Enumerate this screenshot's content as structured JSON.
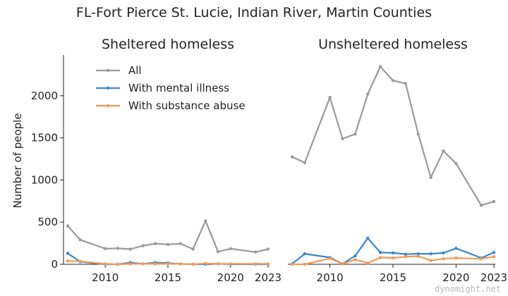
{
  "figure": {
    "title": "FL-Fort Pierce St. Lucie, Indian River, Martin Counties",
    "watermark": "dynomight.net"
  },
  "chart_data": [
    {
      "type": "line",
      "title": "Sheltered homeless",
      "xlabel": "",
      "ylabel": "Number of people",
      "xlim": [
        2007,
        2023
      ],
      "ylim": [
        0,
        2400
      ],
      "xticks": [
        2010,
        2015,
        2020,
        2023
      ],
      "yticks": [
        0,
        500,
        1000,
        1500,
        2000
      ],
      "legend": "top-left",
      "x": [
        2007,
        2008,
        2010,
        2011,
        2012,
        2013,
        2014,
        2015,
        2016,
        2017,
        2018,
        2019,
        2020,
        2022,
        2023
      ],
      "series": [
        {
          "name": "All",
          "color": "#9a9a9a",
          "values": [
            455,
            290,
            185,
            190,
            180,
            220,
            245,
            235,
            245,
            180,
            515,
            150,
            185,
            145,
            180
          ]
        },
        {
          "name": "With mental illness",
          "color": "#3b86d4",
          "values": [
            130,
            30,
            0,
            0,
            20,
            5,
            20,
            15,
            5,
            0,
            0,
            5,
            0,
            0,
            0
          ]
        },
        {
          "name": "With substance abuse",
          "color": "#f39a55",
          "values": [
            40,
            35,
            5,
            0,
            5,
            5,
            5,
            5,
            5,
            0,
            10,
            5,
            5,
            5,
            5
          ]
        }
      ]
    },
    {
      "type": "line",
      "title": "Unsheltered homeless",
      "xlabel": "",
      "ylabel": "",
      "xlim": [
        2007,
        2023
      ],
      "ylim": [
        0,
        2400
      ],
      "xticks": [
        2010,
        2015,
        2020,
        2023
      ],
      "yticks": [],
      "legend": "none",
      "x": [
        2007,
        2008,
        2010,
        2011,
        2012,
        2013,
        2014,
        2015,
        2016,
        2017,
        2018,
        2019,
        2020,
        2022,
        2023
      ],
      "series": [
        {
          "name": "All",
          "color": "#9a9a9a",
          "values": [
            1275,
            1205,
            1980,
            1490,
            1545,
            2020,
            2345,
            2180,
            2145,
            1545,
            1030,
            1345,
            1195,
            700,
            745
          ]
        },
        {
          "name": "With mental illness",
          "color": "#3b86d4",
          "values": [
            5,
            125,
            80,
            5,
            100,
            310,
            140,
            135,
            120,
            125,
            125,
            135,
            190,
            75,
            140
          ]
        },
        {
          "name": "With substance abuse",
          "color": "#f39a55",
          "values": [
            0,
            0,
            70,
            5,
            55,
            15,
            80,
            75,
            90,
            95,
            45,
            65,
            75,
            65,
            90
          ]
        }
      ]
    }
  ]
}
